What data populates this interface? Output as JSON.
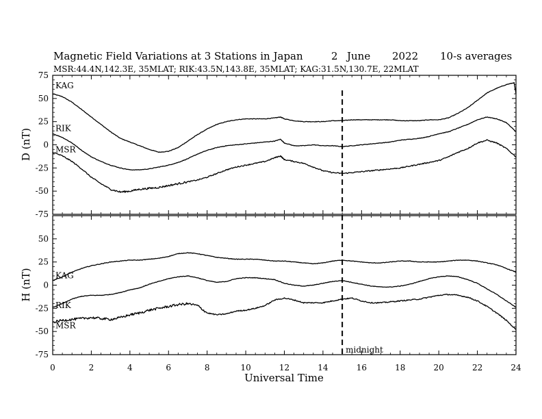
{
  "header": {
    "title": "Magnetic Field Variations at 3 Stations in Japan",
    "day": "2",
    "month": "June",
    "year": "2022",
    "resolution": "10-s averages",
    "subtitle": "MSR:44.4N,142.3E, 35MLAT;  RIK:43.5N,143.8E, 35MLAT;  KAG:31.5N,130.7E, 22MLAT"
  },
  "chart_data": [
    {
      "type": "line",
      "panel": "top",
      "ylabel": "D (nT)",
      "ylim": [
        -75,
        75
      ],
      "yticks": [
        75,
        50,
        25,
        0,
        -25,
        -50,
        -75
      ],
      "xlim": [
        0,
        24
      ],
      "series": [
        {
          "name": "KAG",
          "x": [
            0,
            0.5,
            1,
            1.5,
            2,
            2.5,
            3,
            3.5,
            4,
            4.5,
            5,
            5.5,
            6,
            6.5,
            7,
            7.5,
            8,
            8.5,
            9,
            9.5,
            10,
            10.5,
            11,
            11.5,
            11.8,
            12,
            12.5,
            13,
            13.5,
            14,
            14.5,
            15,
            15.5,
            16,
            16.5,
            17,
            17.5,
            18,
            18.5,
            19,
            19.5,
            20,
            20.5,
            21,
            21.5,
            22,
            22.5,
            23,
            23.5,
            23.9,
            24
          ],
          "values": [
            55,
            52,
            46,
            38,
            30,
            22,
            14,
            7,
            3,
            -1,
            -5,
            -8,
            -7,
            -3,
            4,
            11,
            17,
            22,
            25,
            27,
            28,
            28,
            28,
            29,
            30,
            28,
            26,
            25,
            25,
            25,
            26,
            26,
            27,
            27,
            27,
            27,
            27,
            26,
            26,
            26,
            27,
            27,
            29,
            34,
            40,
            48,
            56,
            61,
            65,
            67,
            55
          ]
        },
        {
          "name": "RIK",
          "x": [
            0,
            0.5,
            1,
            1.5,
            2,
            2.5,
            3,
            3.5,
            4,
            4.5,
            5,
            5.5,
            6,
            6.5,
            7,
            7.5,
            8,
            8.5,
            9,
            9.5,
            10,
            10.5,
            11,
            11.5,
            11.8,
            12,
            12.5,
            13,
            13.5,
            14,
            14.5,
            15,
            15.5,
            16,
            16.5,
            17,
            17.5,
            18,
            18.5,
            19,
            19.5,
            20,
            20.5,
            21,
            21.5,
            22,
            22.5,
            23,
            23.5,
            24
          ],
          "values": [
            12,
            8,
            2,
            -6,
            -13,
            -18,
            -22,
            -25,
            -27,
            -27,
            -26,
            -24,
            -22,
            -19,
            -15,
            -10,
            -6,
            -3,
            -1,
            0,
            1,
            2,
            3,
            4,
            6,
            2,
            -1,
            -1,
            0,
            -1,
            -1,
            -2,
            -1,
            0,
            1,
            2,
            3,
            5,
            6,
            7,
            9,
            12,
            14,
            18,
            22,
            27,
            30,
            28,
            24,
            14
          ]
        },
        {
          "name": "MSR",
          "x": [
            0,
            0.5,
            1,
            1.5,
            2,
            2.5,
            3,
            3.5,
            4,
            4.5,
            5,
            5.5,
            6,
            6.5,
            7,
            7.5,
            8,
            8.5,
            9,
            9.5,
            10,
            10.5,
            11,
            11.5,
            11.8,
            12,
            12.5,
            13,
            13.5,
            14,
            14.5,
            15,
            15.5,
            16,
            16.5,
            17,
            17.5,
            18,
            18.5,
            19,
            19.5,
            20,
            20.5,
            21,
            21.5,
            22,
            22.5,
            23,
            23.5,
            24
          ],
          "values": [
            -8,
            -12,
            -18,
            -26,
            -35,
            -42,
            -48,
            -51,
            -50,
            -48,
            -47,
            -46,
            -44,
            -42,
            -40,
            -38,
            -35,
            -31,
            -27,
            -24,
            -22,
            -20,
            -18,
            -14,
            -12,
            -16,
            -18,
            -20,
            -24,
            -28,
            -30,
            -31,
            -30,
            -29,
            -28,
            -27,
            -26,
            -25,
            -23,
            -21,
            -19,
            -17,
            -13,
            -8,
            -4,
            2,
            5,
            2,
            -4,
            -13
          ]
        }
      ]
    },
    {
      "type": "line",
      "panel": "bottom",
      "ylabel": "H (nT)",
      "xlabel": "Universal Time",
      "ylim": [
        -75,
        75
      ],
      "yticks": [
        50,
        25,
        0,
        -25,
        -50,
        -75
      ],
      "xlim": [
        0,
        24
      ],
      "xticks": [
        0,
        2,
        4,
        6,
        8,
        10,
        12,
        14,
        16,
        18,
        20,
        22,
        24
      ],
      "annotation": {
        "text": "midnight",
        "x": 15
      },
      "series": [
        {
          "name": "KAG",
          "x": [
            0,
            0.5,
            1,
            1.5,
            2,
            2.5,
            3,
            3.5,
            4,
            4.5,
            5,
            5.5,
            6,
            6.5,
            7,
            7.5,
            8,
            8.5,
            9,
            9.5,
            10,
            10.5,
            11,
            11.5,
            12,
            12.5,
            13,
            13.5,
            14,
            14.5,
            15,
            15.5,
            16,
            16.5,
            17,
            17.5,
            18,
            18.5,
            19,
            19.5,
            20,
            20.5,
            21,
            21.5,
            22,
            22.5,
            23,
            23.5,
            24
          ],
          "values": [
            5,
            9,
            14,
            18,
            21,
            23,
            25,
            26,
            27,
            27,
            28,
            29,
            31,
            34,
            35,
            34,
            32,
            30,
            29,
            28,
            28,
            28,
            27,
            26,
            26,
            25,
            24,
            23,
            24,
            26,
            27,
            26,
            25,
            24,
            24,
            25,
            26,
            26,
            25,
            25,
            25,
            26,
            27,
            27,
            26,
            24,
            22,
            18,
            14
          ]
        },
        {
          "name": "RIK",
          "x": [
            0,
            0.5,
            1,
            1.5,
            2,
            2.5,
            3,
            3.5,
            4,
            4.5,
            5,
            5.5,
            6,
            6.5,
            7,
            7.5,
            8,
            8.5,
            9,
            9.5,
            10,
            10.5,
            11,
            11.5,
            12,
            12.5,
            13,
            13.5,
            14,
            14.5,
            15,
            15.5,
            16,
            16.5,
            17,
            17.5,
            18,
            18.5,
            19,
            19.5,
            20,
            20.5,
            21,
            21.5,
            22,
            22.5,
            23,
            23.5,
            24
          ],
          "values": [
            -24,
            -20,
            -15,
            -12,
            -11,
            -11,
            -10,
            -8,
            -5,
            -3,
            1,
            4,
            7,
            9,
            10,
            8,
            5,
            3,
            4,
            7,
            8,
            8,
            7,
            6,
            2,
            0,
            -1,
            0,
            2,
            4,
            5,
            3,
            1,
            -1,
            -2,
            -2,
            -1,
            1,
            4,
            7,
            9,
            10,
            9,
            6,
            2,
            -4,
            -10,
            -17,
            -24
          ]
        },
        {
          "name": "MSR",
          "x": [
            0,
            0.5,
            1,
            1.5,
            2,
            2.5,
            3,
            3.5,
            4,
            4.5,
            5,
            5.5,
            6,
            6.5,
            7,
            7.5,
            8,
            8.5,
            9,
            9.5,
            10,
            10.5,
            11,
            11.5,
            12,
            12.5,
            13,
            13.5,
            14,
            14.5,
            15,
            15.5,
            16,
            16.5,
            17,
            17.5,
            18,
            18.5,
            19,
            19.5,
            20,
            20.5,
            21,
            21.5,
            22,
            22.5,
            23,
            23.5,
            24
          ],
          "values": [
            -40,
            -38,
            -37,
            -36,
            -35,
            -36,
            -37,
            -35,
            -32,
            -30,
            -27,
            -25,
            -23,
            -21,
            -20,
            -22,
            -30,
            -32,
            -31,
            -28,
            -27,
            -25,
            -22,
            -16,
            -14,
            -16,
            -19,
            -19,
            -19,
            -17,
            -15,
            -14,
            -17,
            -19,
            -19,
            -18,
            -17,
            -16,
            -15,
            -13,
            -11,
            -10,
            -11,
            -13,
            -17,
            -23,
            -30,
            -38,
            -48
          ]
        }
      ]
    }
  ]
}
